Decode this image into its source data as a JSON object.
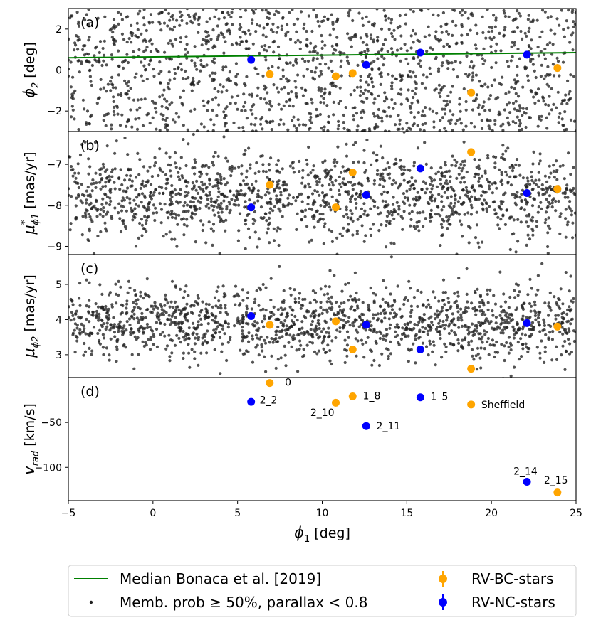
{
  "chart_data": {
    "type": "scatter",
    "x_axis": {
      "label": "ϕ1 [deg]",
      "lim": [
        -5,
        25
      ],
      "ticks": [
        -5,
        0,
        5,
        10,
        15,
        20,
        25
      ],
      "tick_labels": [
        "−5",
        "0",
        "5",
        "10",
        "15",
        "20",
        "25"
      ]
    },
    "panels": [
      {
        "id": "a",
        "label": "(a)",
        "ylabel_main": "ϕ",
        "ylabel_sub": "2",
        "ylabel_rest": " [deg]",
        "ylim": [
          -3,
          3
        ],
        "yticks": [
          2,
          0,
          -2
        ],
        "ytick_labels": [
          "2",
          "0",
          "−2"
        ],
        "background": {
          "x_range": [
            -5,
            25
          ],
          "y_range": [
            -3,
            3
          ],
          "count": 1500
        },
        "median_line": {
          "x": [
            -5,
            25
          ],
          "y": [
            0.6,
            0.85
          ]
        },
        "bc": [
          [
            6.9,
            -0.2
          ],
          [
            10.8,
            -0.3
          ],
          [
            11.8,
            -0.15
          ],
          [
            18.8,
            -1.1
          ],
          [
            23.9,
            0.1
          ]
        ],
        "nc": [
          [
            5.8,
            0.5
          ],
          [
            12.6,
            0.25
          ],
          [
            15.8,
            0.85
          ],
          [
            22.1,
            0.75
          ]
        ]
      },
      {
        "id": "b",
        "label": "(b)",
        "ylabel_main": "μ",
        "ylabel_sup": "*",
        "ylabel_sub": "ϕ1",
        "ylabel_rest": " [mas/yr]",
        "ylim": [
          -9.2,
          -6.2
        ],
        "yticks": [
          -7,
          -8,
          -9
        ],
        "ytick_labels": [
          "−7",
          "−8",
          "−9"
        ],
        "background": {
          "x_range": [
            -5,
            25
          ],
          "y_range": [
            -9.1,
            -6.4
          ],
          "count": 1500
        },
        "bc": [
          [
            6.9,
            -7.5
          ],
          [
            10.8,
            -8.05
          ],
          [
            11.8,
            -7.2
          ],
          [
            18.8,
            -6.7
          ],
          [
            23.9,
            -7.6
          ]
        ],
        "nc": [
          [
            5.8,
            -8.05
          ],
          [
            12.6,
            -7.75
          ],
          [
            15.8,
            -7.1
          ],
          [
            22.1,
            -7.7
          ]
        ]
      },
      {
        "id": "c",
        "label": "(c)",
        "ylabel_main": "μ",
        "ylabel_sub": "ϕ2",
        "ylabel_rest": " [mas/yr]",
        "ylim": [
          2.35,
          5.85
        ],
        "yticks": [
          5,
          4,
          3
        ],
        "ytick_labels": [
          "5",
          "4",
          "3"
        ],
        "background": {
          "x_range": [
            -5,
            25
          ],
          "y_range": [
            2.6,
            5.2
          ],
          "count": 1500
        },
        "bc": [
          [
            6.9,
            3.85
          ],
          [
            10.8,
            3.95
          ],
          [
            11.8,
            3.15
          ],
          [
            18.8,
            2.6
          ],
          [
            23.9,
            3.8
          ]
        ],
        "nc": [
          [
            5.8,
            4.1
          ],
          [
            12.6,
            3.85
          ],
          [
            15.8,
            3.15
          ],
          [
            22.1,
            3.9
          ]
        ]
      },
      {
        "id": "d",
        "label": "(d)",
        "ylabel_main": "v",
        "ylabel_sub": "rad",
        "ylabel_rest": " [km/s]",
        "ylim": [
          -137,
          0
        ],
        "yticks": [
          -50,
          -100
        ],
        "ytick_labels": [
          "−50",
          "−100"
        ],
        "bc": [
          [
            6.9,
            -6
          ],
          [
            10.8,
            -28
          ],
          [
            11.8,
            -21
          ],
          [
            18.8,
            -30
          ],
          [
            23.9,
            -128
          ]
        ],
        "nc": [
          [
            5.8,
            -27
          ],
          [
            12.6,
            -54
          ],
          [
            15.8,
            -22
          ],
          [
            22.1,
            -116
          ]
        ],
        "annotations": [
          {
            "text": "_0",
            "x": 7.5,
            "y": -5
          },
          {
            "text": "2_2",
            "x": 6.3,
            "y": -25
          },
          {
            "text": "2_10",
            "x": 9.3,
            "y": -39
          },
          {
            "text": "1_8",
            "x": 12.4,
            "y": -20
          },
          {
            "text": "2_11",
            "x": 13.2,
            "y": -54
          },
          {
            "text": "1_5",
            "x": 16.4,
            "y": -21
          },
          {
            "text": "Sheffield",
            "x": 19.4,
            "y": -30
          },
          {
            "text": "2_14",
            "x": 21.3,
            "y": -104
          },
          {
            "text": "2_15",
            "x": 23.1,
            "y": -114
          }
        ]
      }
    ],
    "legend": {
      "placement": "bottom",
      "entries": [
        {
          "label": "Median Bonaca et al. [2019]",
          "marker": "line",
          "color": "#008000"
        },
        {
          "label": "Memb. prob ≥ 50%, parallax < 0.8",
          "marker": "dot",
          "color": "#222222"
        },
        {
          "label": "RV-BC-stars",
          "marker": "errorbar-point",
          "color": "#FFA500"
        },
        {
          "label": "RV-NC-stars",
          "marker": "errorbar-point",
          "color": "#0000FF"
        }
      ]
    },
    "colors": {
      "bc": "#FFA500",
      "nc": "#0000FF",
      "median": "#008000",
      "background": "#222222"
    }
  }
}
